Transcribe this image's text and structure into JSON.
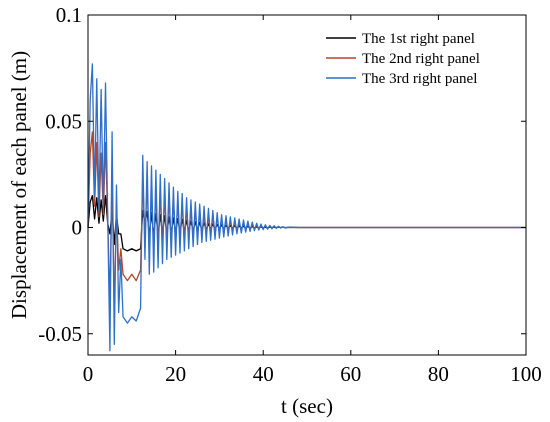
{
  "chart_data": {
    "type": "line",
    "xlabel": "t (sec)",
    "ylabel": "Displacement of each panel (m)",
    "xlim": [
      0,
      100
    ],
    "ylim": [
      -0.06,
      0.1
    ],
    "xticks": [
      0,
      20,
      40,
      60,
      80,
      100
    ],
    "yticks": [
      -0.05,
      0,
      0.05,
      0.1
    ],
    "xtick_labels": [
      "0",
      "20",
      "40",
      "60",
      "80",
      "100"
    ],
    "ytick_labels": [
      "-0.05",
      "0",
      "0.05",
      "0.1"
    ],
    "grid": false,
    "legend_position": "top-right",
    "series": [
      {
        "name": "The 1st right panel",
        "color": "#000000",
        "x": [
          0,
          0.5,
          1,
          1.5,
          2,
          2.5,
          3,
          3.5,
          4,
          4.5,
          5,
          5.5,
          6,
          6.5,
          7,
          7.5,
          8,
          9,
          10,
          11,
          12,
          12.5,
          13,
          13.5,
          14,
          14.5,
          15,
          15.5,
          16,
          16.5,
          17,
          17.5,
          18,
          18.5,
          19,
          19.5,
          20,
          20.5,
          21,
          21.5,
          22,
          22.5,
          23,
          23.5,
          24,
          24.5,
          25,
          25.5,
          26,
          26.5,
          27,
          27.5,
          28,
          28.5,
          29,
          29.5,
          30,
          30.5,
          31,
          31.5,
          32,
          32.5,
          33,
          33.5,
          34,
          34.5,
          35,
          35.5,
          36,
          36.5,
          37,
          37.5,
          38,
          38.5,
          39,
          39.5,
          40,
          40.5,
          41,
          41.5,
          42,
          42.5,
          43,
          43.5,
          44,
          44.5,
          45,
          46,
          48,
          50,
          55,
          60,
          70,
          80,
          90,
          100
        ],
        "y": [
          0,
          0.012,
          0.015,
          0.004,
          0.014,
          0.002,
          0.013,
          0.003,
          0.015,
          0.002,
          -0.003,
          0.008,
          -0.008,
          0.006,
          -0.003,
          -0.003,
          -0.01,
          -0.011,
          -0.01,
          -0.011,
          -0.01,
          0.008,
          0.002,
          0.0075,
          -0.004,
          0.007,
          -0.004,
          0.0065,
          -0.0035,
          0.006,
          -0.003,
          0.0055,
          -0.003,
          0.005,
          -0.0027,
          0.0046,
          -0.0025,
          0.0042,
          -0.0022,
          0.0038,
          -0.002,
          0.0034,
          -0.0018,
          0.003,
          -0.0016,
          0.0027,
          -0.0014,
          0.0024,
          -0.0012,
          0.0021,
          -0.001,
          0.0018,
          -0.0009,
          0.0016,
          -0.0008,
          0.0014,
          -0.0007,
          0.0012,
          -0.0006,
          0.001,
          -0.0005,
          0.0009,
          -0.0004,
          0.0008,
          -0.0004,
          0.0007,
          -0.0003,
          0.0006,
          -0.0003,
          0.0005,
          -0.0002,
          0.0004,
          -0.0002,
          0.0003,
          -0.0001,
          0.0003,
          -0.0001,
          0.0002,
          -0.0001,
          0.0002,
          0,
          0.0001,
          0,
          0.0001,
          0,
          0.0001,
          0,
          0,
          0,
          0,
          0,
          0,
          0,
          0,
          0,
          0
        ]
      },
      {
        "name": "The 2nd right panel",
        "color": "#b5472a",
        "x": [
          0,
          0.5,
          1,
          1.5,
          2,
          2.5,
          3,
          3.5,
          4,
          4.5,
          5,
          5.5,
          6,
          6.5,
          7,
          7.5,
          8,
          9,
          10,
          11,
          12,
          12.5,
          13,
          13.5,
          14,
          14.5,
          15,
          15.5,
          16,
          16.5,
          17,
          17.5,
          18,
          18.5,
          19,
          19.5,
          20,
          20.5,
          21,
          21.5,
          22,
          22.5,
          23,
          23.5,
          24,
          24.5,
          25,
          25.5,
          26,
          26.5,
          27,
          27.5,
          28,
          28.5,
          29,
          29.5,
          30,
          30.5,
          31,
          31.5,
          32,
          32.5,
          33,
          33.5,
          34,
          34.5,
          35,
          35.5,
          36,
          36.5,
          37,
          37.5,
          38,
          38.5,
          39,
          39.5,
          40,
          40.5,
          41,
          41.5,
          42,
          42.5,
          43,
          43.5,
          44,
          44.5,
          45,
          46,
          48,
          50,
          55,
          60,
          70,
          80,
          90,
          100
        ],
        "y": [
          0,
          0.035,
          0.045,
          0.01,
          0.04,
          0.005,
          0.035,
          0.006,
          0.04,
          0.004,
          -0.035,
          0.025,
          -0.04,
          0.01,
          -0.02,
          -0.01,
          -0.022,
          -0.025,
          -0.022,
          -0.025,
          -0.02,
          0.022,
          -0.005,
          0.02,
          -0.012,
          0.018,
          -0.011,
          0.017,
          -0.01,
          0.016,
          -0.009,
          0.015,
          -0.008,
          0.014,
          -0.0075,
          0.013,
          -0.007,
          0.012,
          -0.0065,
          0.011,
          -0.006,
          0.01,
          -0.0055,
          0.009,
          -0.005,
          0.008,
          -0.0045,
          0.007,
          -0.004,
          0.006,
          -0.0035,
          0.0055,
          -0.003,
          0.005,
          -0.0027,
          0.0045,
          -0.0024,
          0.004,
          -0.0021,
          0.0035,
          -0.0018,
          0.003,
          -0.0015,
          0.0026,
          -0.0013,
          0.0022,
          -0.0011,
          0.0019,
          -0.0009,
          0.0016,
          -0.0008,
          0.0013,
          -0.0006,
          0.0011,
          -0.0005,
          0.0009,
          -0.0004,
          0.0007,
          -0.0003,
          0.0006,
          -0.0002,
          0.0004,
          -0.0002,
          0.0003,
          -0.0001,
          0.0002,
          -0.0001,
          0.0001,
          0,
          0,
          0,
          0,
          0,
          0,
          0,
          0
        ]
      },
      {
        "name": "The 3rd right panel",
        "color": "#2f6fc9",
        "x": [
          0,
          0.5,
          1,
          1.5,
          2,
          2.5,
          3,
          3.5,
          4,
          4.5,
          5,
          5.5,
          6,
          6.5,
          7,
          7.5,
          8,
          9,
          10,
          11,
          12,
          12.5,
          13,
          13.5,
          14,
          14.5,
          15,
          15.5,
          16,
          16.5,
          17,
          17.5,
          18,
          18.5,
          19,
          19.5,
          20,
          20.5,
          21,
          21.5,
          22,
          22.5,
          23,
          23.5,
          24,
          24.5,
          25,
          25.5,
          26,
          26.5,
          27,
          27.5,
          28,
          28.5,
          29,
          29.5,
          30,
          30.5,
          31,
          31.5,
          32,
          32.5,
          33,
          33.5,
          34,
          34.5,
          35,
          35.5,
          36,
          36.5,
          37,
          37.5,
          38,
          38.5,
          39,
          39.5,
          40,
          40.5,
          41,
          41.5,
          42,
          42.5,
          43,
          43.5,
          44,
          44.5,
          45,
          46,
          48,
          50,
          55,
          60,
          70,
          80,
          90,
          100
        ],
        "y": [
          0,
          0.06,
          0.077,
          0.015,
          0.07,
          0.008,
          0.065,
          0.009,
          0.068,
          0.005,
          -0.058,
          0.045,
          -0.055,
          0.02,
          -0.04,
          -0.015,
          -0.042,
          -0.045,
          -0.042,
          -0.044,
          -0.038,
          0.034,
          -0.015,
          0.031,
          -0.022,
          0.029,
          -0.021,
          0.027,
          -0.019,
          0.025,
          -0.017,
          0.023,
          -0.015,
          0.021,
          -0.014,
          0.019,
          -0.013,
          0.017,
          -0.012,
          0.016,
          -0.011,
          0.014,
          -0.01,
          0.013,
          -0.009,
          0.012,
          -0.008,
          0.011,
          -0.007,
          0.01,
          -0.0065,
          0.009,
          -0.006,
          0.008,
          -0.0055,
          0.007,
          -0.005,
          0.006,
          -0.0045,
          0.0055,
          -0.004,
          0.005,
          -0.0035,
          0.0045,
          -0.003,
          0.004,
          -0.0026,
          0.0035,
          -0.0022,
          0.003,
          -0.0018,
          0.0025,
          -0.0015,
          0.002,
          -0.0012,
          0.0016,
          -0.001,
          0.0013,
          -0.0008,
          0.001,
          -0.0006,
          0.0008,
          -0.0004,
          0.0006,
          -0.0003,
          0.0004,
          -0.0002,
          0.0002,
          0,
          0,
          0,
          0,
          0,
          0,
          0,
          0
        ]
      }
    ]
  }
}
